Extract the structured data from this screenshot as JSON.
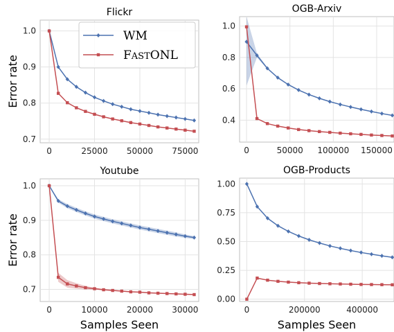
{
  "chart_data": [
    {
      "type": "line",
      "title": "Flickr",
      "xlabel": "",
      "ylabel": "Error rate",
      "xlim": [
        -5000,
        82500
      ],
      "ylim": [
        0.69,
        1.03
      ],
      "xticks": [
        0,
        25000,
        50000,
        75000
      ],
      "yticks": [
        0.7,
        0.8,
        0.9,
        1.0
      ],
      "ytick_labels": [
        "0.7",
        "0.8",
        "0.9",
        "1.0"
      ],
      "grid": true,
      "legend": {
        "position": "top-right",
        "entries": [
          "WM",
          "FastONL"
        ]
      },
      "series": [
        {
          "name": "WM",
          "color": "#4c72b0",
          "marker": "diamond",
          "x": [
            0,
            5000,
            10000,
            15000,
            20000,
            25000,
            30000,
            35000,
            40000,
            45000,
            50000,
            55000,
            60000,
            65000,
            70000,
            75000,
            80000
          ],
          "y": [
            1.0,
            0.9,
            0.866,
            0.845,
            0.829,
            0.816,
            0.806,
            0.797,
            0.79,
            0.783,
            0.778,
            0.773,
            0.768,
            0.764,
            0.76,
            0.756,
            0.752
          ]
        },
        {
          "name": "FastONL",
          "color": "#c44e52",
          "marker": "square",
          "x": [
            0,
            5000,
            10000,
            15000,
            20000,
            25000,
            30000,
            35000,
            40000,
            45000,
            50000,
            55000,
            60000,
            65000,
            70000,
            75000,
            80000
          ],
          "y": [
            1.0,
            0.827,
            0.801,
            0.787,
            0.777,
            0.769,
            0.762,
            0.756,
            0.751,
            0.746,
            0.742,
            0.738,
            0.734,
            0.731,
            0.728,
            0.725,
            0.722
          ]
        }
      ]
    },
    {
      "type": "line",
      "title": "OGB-Arxiv",
      "xlabel": "",
      "ylabel": "",
      "xlim": [
        -8000,
        170000
      ],
      "ylim": [
        0.26,
        1.06
      ],
      "xticks": [
        0,
        50000,
        100000,
        150000
      ],
      "yticks": [
        0.4,
        0.6,
        0.8,
        1.0
      ],
      "ytick_labels": [
        "0.4",
        "0.6",
        "0.8",
        "1.0"
      ],
      "grid": true,
      "series": [
        {
          "name": "WM",
          "color": "#4c72b0",
          "marker": "diamond",
          "x": [
            0,
            12000,
            24000,
            36000,
            48000,
            60000,
            72000,
            84000,
            96000,
            108000,
            120000,
            132000,
            144000,
            156000,
            168000
          ],
          "y": [
            0.9,
            0.813,
            0.73,
            0.671,
            0.627,
            0.592,
            0.563,
            0.539,
            0.518,
            0.5,
            0.484,
            0.469,
            0.455,
            0.442,
            0.43
          ],
          "band_low": [
            0.62,
            0.8,
            0.725,
            0.667,
            0.624,
            0.59,
            0.561,
            0.537,
            0.516,
            0.498,
            0.482,
            0.467,
            0.453,
            0.44,
            0.428
          ],
          "band_high": [
            1.06,
            0.826,
            0.735,
            0.675,
            0.63,
            0.594,
            0.565,
            0.541,
            0.52,
            0.502,
            0.486,
            0.471,
            0.457,
            0.444,
            0.432
          ]
        },
        {
          "name": "FastONL",
          "color": "#c44e52",
          "marker": "square",
          "x": [
            0,
            12000,
            24000,
            36000,
            48000,
            60000,
            72000,
            84000,
            96000,
            108000,
            120000,
            132000,
            144000,
            156000,
            168000
          ],
          "y": [
            0.995,
            0.41,
            0.378,
            0.362,
            0.35,
            0.34,
            0.333,
            0.327,
            0.322,
            0.317,
            0.313,
            0.309,
            0.305,
            0.302,
            0.299
          ]
        }
      ]
    },
    {
      "type": "line",
      "title": "Youtube",
      "xlabel": "Samples Seen",
      "ylabel": "Error rate",
      "xlim": [
        -2000,
        33000
      ],
      "ylim": [
        0.665,
        1.02
      ],
      "xticks": [
        0,
        10000,
        20000,
        30000
      ],
      "yticks": [
        0.7,
        0.8,
        0.9,
        1.0
      ],
      "ytick_labels": [
        "0.7",
        "0.8",
        "0.9",
        "1.0"
      ],
      "grid": true,
      "series": [
        {
          "name": "WM",
          "color": "#4c72b0",
          "marker": "diamond",
          "x": [
            0,
            2000,
            4000,
            6000,
            8000,
            10000,
            12000,
            14000,
            16000,
            18000,
            20000,
            22000,
            24000,
            26000,
            28000,
            30000,
            32000
          ],
          "y": [
            1.0,
            0.956,
            0.941,
            0.93,
            0.92,
            0.911,
            0.904,
            0.897,
            0.891,
            0.885,
            0.879,
            0.874,
            0.869,
            0.864,
            0.859,
            0.854,
            0.85
          ],
          "band_low": [
            1.0,
            0.951,
            0.935,
            0.924,
            0.914,
            0.905,
            0.898,
            0.891,
            0.885,
            0.879,
            0.873,
            0.868,
            0.863,
            0.858,
            0.853,
            0.849,
            0.846
          ],
          "band_high": [
            1.0,
            0.961,
            0.947,
            0.936,
            0.926,
            0.917,
            0.91,
            0.903,
            0.897,
            0.891,
            0.885,
            0.88,
            0.875,
            0.87,
            0.865,
            0.859,
            0.854
          ]
        },
        {
          "name": "FastONL",
          "color": "#c44e52",
          "marker": "square",
          "x": [
            0,
            2000,
            4000,
            6000,
            8000,
            10000,
            12000,
            14000,
            16000,
            18000,
            20000,
            22000,
            24000,
            26000,
            28000,
            30000,
            32000
          ],
          "y": [
            1.0,
            0.735,
            0.716,
            0.71,
            0.705,
            0.702,
            0.699,
            0.697,
            0.695,
            0.693,
            0.692,
            0.69,
            0.689,
            0.688,
            0.687,
            0.686,
            0.685
          ],
          "band_low": [
            1.0,
            0.722,
            0.705,
            0.702,
            0.7,
            0.699,
            0.697,
            0.695,
            0.694,
            0.692,
            0.691,
            0.689,
            0.688,
            0.687,
            0.686,
            0.685,
            0.684
          ],
          "band_high": [
            1.0,
            0.748,
            0.727,
            0.718,
            0.71,
            0.705,
            0.701,
            0.699,
            0.696,
            0.694,
            0.693,
            0.691,
            0.69,
            0.689,
            0.688,
            0.687,
            0.686
          ]
        }
      ]
    },
    {
      "type": "line",
      "title": "OGB-Products",
      "xlabel": "Samples Seen",
      "ylabel": "",
      "xlim": [
        -25000,
        510000
      ],
      "ylim": [
        -0.02,
        1.05
      ],
      "xticks": [
        0,
        200000,
        400000
      ],
      "yticks": [
        0.0,
        0.25,
        0.5,
        0.75,
        1.0
      ],
      "ytick_labels": [
        "0.00",
        "0.25",
        "0.50",
        "0.75",
        "1.00"
      ],
      "grid": true,
      "series": [
        {
          "name": "WM",
          "color": "#4c72b0",
          "marker": "diamond",
          "x": [
            0,
            36000,
            72000,
            108000,
            144000,
            180000,
            216000,
            252000,
            288000,
            324000,
            360000,
            396000,
            432000,
            468000,
            504000
          ],
          "y": [
            1.0,
            0.803,
            0.702,
            0.637,
            0.588,
            0.548,
            0.515,
            0.487,
            0.462,
            0.441,
            0.422,
            0.405,
            0.39,
            0.376,
            0.363
          ]
        },
        {
          "name": "FastONL",
          "color": "#c44e52",
          "marker": "square",
          "x": [
            0,
            36000,
            72000,
            108000,
            144000,
            180000,
            216000,
            252000,
            288000,
            324000,
            360000,
            396000,
            432000,
            468000,
            504000
          ],
          "y": [
            0.0,
            0.183,
            0.165,
            0.155,
            0.148,
            0.143,
            0.139,
            0.136,
            0.134,
            0.132,
            0.13,
            0.128,
            0.127,
            0.126,
            0.125
          ]
        }
      ]
    }
  ]
}
